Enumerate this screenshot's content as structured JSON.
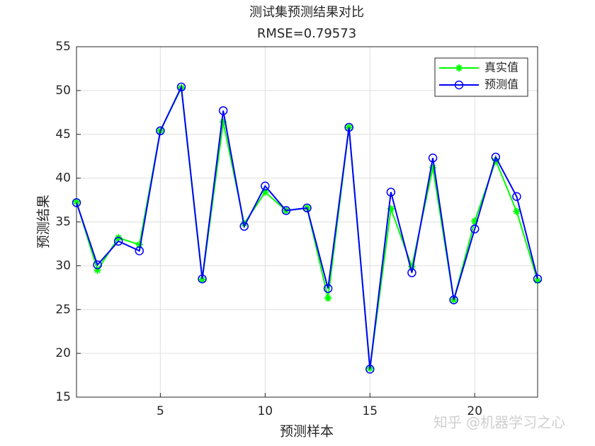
{
  "chart_data": {
    "type": "line",
    "title": "测试集预测结果对比",
    "subtitle": "RMSE=0.79573",
    "x_label": "预测样本",
    "y_label": "预测结果",
    "x": [
      1,
      2,
      3,
      4,
      5,
      6,
      7,
      8,
      9,
      10,
      11,
      12,
      13,
      14,
      15,
      16,
      17,
      18,
      19,
      20,
      21,
      22,
      23
    ],
    "series": [
      {
        "name": "真实值",
        "color": "#00ff00",
        "marker": "asterisk",
        "values": [
          37.3,
          29.5,
          33.2,
          32.4,
          45.4,
          50.3,
          28.4,
          46.4,
          34.8,
          38.4,
          36.3,
          36.6,
          26.3,
          45.8,
          18.3,
          36.5,
          29.9,
          41.2,
          26.1,
          35.1,
          42.0,
          36.2,
          28.3
        ]
      },
      {
        "name": "预测值",
        "color": "#0000ff",
        "marker": "circle",
        "values": [
          37.2,
          30.1,
          32.8,
          31.7,
          45.4,
          50.4,
          28.5,
          47.7,
          34.5,
          39.1,
          36.3,
          36.6,
          27.4,
          45.8,
          18.2,
          38.4,
          29.2,
          42.3,
          26.1,
          34.2,
          42.4,
          37.9,
          28.5
        ]
      }
    ],
    "xlim": [
      1,
      23
    ],
    "xticks": [
      5,
      10,
      15,
      20
    ],
    "ylim": [
      15,
      55
    ],
    "yticks": [
      15,
      20,
      25,
      30,
      35,
      40,
      45,
      50,
      55
    ],
    "grid": true,
    "legend": "upper right",
    "watermark": "知乎 @机器学习之心"
  }
}
